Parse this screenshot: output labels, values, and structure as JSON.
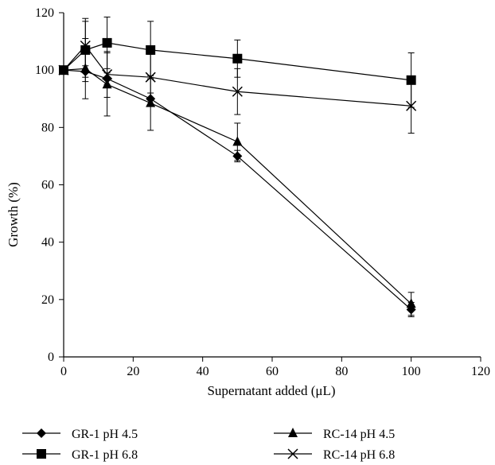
{
  "chart_data": {
    "type": "line",
    "title": "",
    "xlabel": "Supernatant added (μL)",
    "ylabel": "Growth (%)",
    "xlim": [
      0,
      120
    ],
    "ylim": [
      0,
      120
    ],
    "x_ticks": [
      0,
      20,
      40,
      60,
      80,
      100,
      120
    ],
    "y_ticks": [
      0,
      20,
      40,
      60,
      80,
      100,
      120
    ],
    "grid": false,
    "legend_position": "bottom",
    "series": [
      {
        "name": "GR-1 pH 4.5",
        "marker": "diamond",
        "x": [
          0,
          6.25,
          12.5,
          25,
          50,
          100
        ],
        "y": [
          100,
          99.5,
          97,
          90,
          70,
          16.5
        ],
        "error": [
          0,
          2,
          2,
          2,
          2,
          2.5
        ]
      },
      {
        "name": "GR-1 pH 6.8",
        "marker": "square",
        "x": [
          0,
          6.25,
          12.5,
          25,
          50,
          100
        ],
        "y": [
          100,
          107,
          109.5,
          107,
          104,
          96.5
        ],
        "error": [
          0,
          11,
          9,
          10,
          6.5,
          9.5
        ]
      },
      {
        "name": "RC-14 pH 4.5",
        "marker": "triangle",
        "x": [
          0,
          6.25,
          12.5,
          25,
          50,
          100
        ],
        "y": [
          100,
          100.5,
          95,
          88.5,
          75,
          18.5
        ],
        "error": [
          0,
          10.5,
          11,
          9.5,
          6.5,
          4
        ]
      },
      {
        "name": "RC-14 pH 6.8",
        "marker": "x",
        "x": [
          0,
          6.25,
          12.5,
          25,
          50,
          100
        ],
        "y": [
          100,
          108.5,
          98.5,
          97.5,
          92.5,
          87.5
        ],
        "error": [
          0,
          8.5,
          8,
          8,
          8,
          9.5
        ]
      }
    ]
  }
}
